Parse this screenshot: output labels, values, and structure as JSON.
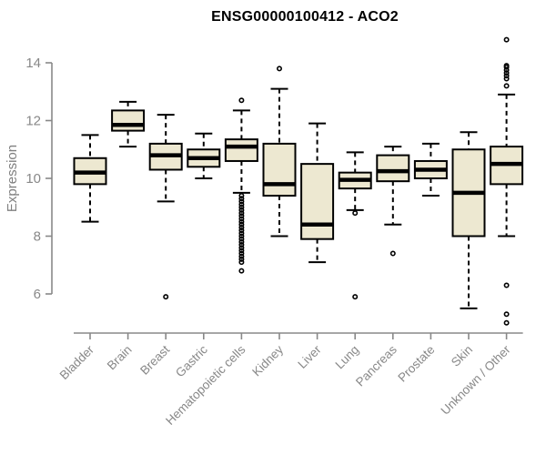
{
  "chart_data": {
    "type": "boxplot",
    "title": "ENSG00000100412 - ACO2",
    "ylabel": "Expression",
    "xlabel": "",
    "ylim": [
      6,
      14
    ],
    "yticks": [
      6,
      8,
      10,
      12,
      14
    ],
    "grid": false,
    "legend": "none",
    "box_fill": "#EDE8D1",
    "box_stroke": "#000000",
    "axis_color": "#888888",
    "title_color": "#000000",
    "categories": [
      "Bladder",
      "Brain",
      "Breast",
      "Gastric",
      "Hematopoietic cells",
      "Kidney",
      "Liver",
      "Lung",
      "Pancreas",
      "Prostate",
      "Skin",
      "Unknown / Other"
    ],
    "series": [
      {
        "category": "Bladder",
        "low": 8.5,
        "q1": 9.8,
        "median": 10.2,
        "q3": 10.7,
        "high": 11.5,
        "outliers": []
      },
      {
        "category": "Brain",
        "low": 11.1,
        "q1": 11.65,
        "median": 11.85,
        "q3": 12.35,
        "high": 12.65,
        "outliers": []
      },
      {
        "category": "Breast",
        "low": 9.2,
        "q1": 10.3,
        "median": 10.8,
        "q3": 11.2,
        "high": 12.2,
        "outliers": [
          5.9
        ]
      },
      {
        "category": "Gastric",
        "low": 10.0,
        "q1": 10.4,
        "median": 10.7,
        "q3": 11.0,
        "high": 11.55,
        "outliers": []
      },
      {
        "category": "Hematopoietic cells",
        "low": 9.5,
        "q1": 10.6,
        "median": 11.1,
        "q3": 11.35,
        "high": 12.35,
        "outliers": [
          12.7,
          9.4,
          9.3,
          9.2,
          9.1,
          9.0,
          8.9,
          8.8,
          8.7,
          8.6,
          8.5,
          8.4,
          8.3,
          8.2,
          8.1,
          8.0,
          7.9,
          7.8,
          7.7,
          7.6,
          7.5,
          7.4,
          7.3,
          7.2,
          7.1,
          6.8
        ]
      },
      {
        "category": "Kidney",
        "low": 8.0,
        "q1": 9.4,
        "median": 9.8,
        "q3": 11.2,
        "high": 13.1,
        "outliers": [
          13.8
        ]
      },
      {
        "category": "Liver",
        "low": 7.1,
        "q1": 7.9,
        "median": 8.4,
        "q3": 10.5,
        "high": 11.9,
        "outliers": []
      },
      {
        "category": "Lung",
        "low": 8.9,
        "q1": 9.65,
        "median": 9.95,
        "q3": 10.2,
        "high": 10.9,
        "outliers": [
          8.8,
          5.9
        ]
      },
      {
        "category": "Pancreas",
        "low": 8.4,
        "q1": 9.9,
        "median": 10.25,
        "q3": 10.8,
        "high": 11.1,
        "outliers": [
          7.4
        ]
      },
      {
        "category": "Prostate",
        "low": 9.4,
        "q1": 10.0,
        "median": 10.3,
        "q3": 10.6,
        "high": 11.2,
        "outliers": []
      },
      {
        "category": "Skin",
        "low": 5.5,
        "q1": 8.0,
        "median": 9.5,
        "q3": 11.0,
        "high": 11.6,
        "outliers": []
      },
      {
        "category": "Unknown / Other",
        "low": 8.0,
        "q1": 9.8,
        "median": 10.5,
        "q3": 11.1,
        "high": 12.9,
        "outliers": [
          14.8,
          13.9,
          13.85,
          13.75,
          13.65,
          13.55,
          13.45,
          13.2,
          6.3,
          5.3,
          5.0
        ]
      }
    ]
  }
}
